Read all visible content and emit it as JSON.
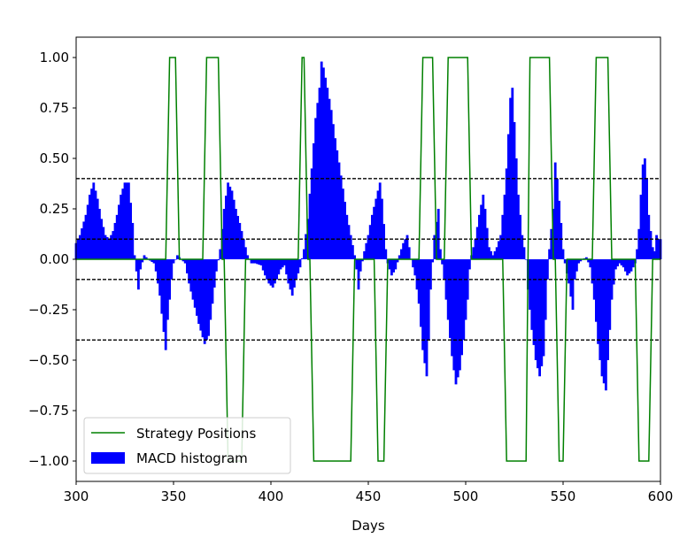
{
  "chart_data": {
    "type": "bar",
    "title": "",
    "xlabel": "Days",
    "ylabel": "",
    "xlim": [
      300,
      600
    ],
    "ylim": [
      -1.1,
      1.1
    ],
    "x_ticks": [
      300,
      350,
      400,
      450,
      500,
      550,
      600
    ],
    "x_tick_labels": [
      "300",
      "350",
      "400",
      "450",
      "500",
      "550",
      "600"
    ],
    "y_ticks": [
      1.0,
      0.75,
      0.5,
      0.25,
      0.0,
      -0.25,
      -0.5,
      -0.75,
      -1.0
    ],
    "y_tick_labels": [
      "1.00",
      "0.75",
      "0.50",
      "0.25",
      "0.00",
      "−0.25",
      "−0.50",
      "−0.75",
      "−1.00"
    ],
    "grid": false,
    "legend_position": "lower-left",
    "threshold_lines": [
      0.4,
      0.1,
      -0.1,
      -0.4
    ],
    "threshold_style": "dashed black",
    "series": [
      {
        "name": "MACD histogram",
        "type": "bar",
        "color": "#0000ff",
        "bar_width": 1,
        "envelope": [
          [
            300,
            0.08
          ],
          [
            302,
            0.12
          ],
          [
            305,
            0.22
          ],
          [
            307,
            0.32
          ],
          [
            309,
            0.38
          ],
          [
            311,
            0.3
          ],
          [
            313,
            0.2
          ],
          [
            315,
            0.12
          ],
          [
            317,
            0.1
          ],
          [
            319,
            0.14
          ],
          [
            321,
            0.22
          ],
          [
            323,
            0.32
          ],
          [
            325,
            0.38
          ],
          [
            327,
            0.38
          ],
          [
            329,
            0.18
          ],
          [
            330,
            0.02
          ],
          [
            331,
            -0.06
          ],
          [
            332,
            -0.15
          ],
          [
            333,
            -0.05
          ],
          [
            335,
            0.02
          ],
          [
            337,
            0.0
          ],
          [
            340,
            -0.02
          ],
          [
            341,
            -0.06
          ],
          [
            343,
            -0.18
          ],
          [
            345,
            -0.36
          ],
          [
            346,
            -0.45
          ],
          [
            347,
            -0.3
          ],
          [
            349,
            -0.1
          ],
          [
            350,
            -0.02
          ],
          [
            352,
            0.02
          ],
          [
            354,
            0.0
          ],
          [
            356,
            -0.02
          ],
          [
            358,
            -0.12
          ],
          [
            360,
            -0.2
          ],
          [
            363,
            -0.32
          ],
          [
            366,
            -0.42
          ],
          [
            368,
            -0.38
          ],
          [
            370,
            -0.22
          ],
          [
            372,
            -0.06
          ],
          [
            374,
            0.05
          ],
          [
            376,
            0.25
          ],
          [
            378,
            0.38
          ],
          [
            380,
            0.34
          ],
          [
            382,
            0.25
          ],
          [
            384,
            0.18
          ],
          [
            386,
            0.1
          ],
          [
            388,
            0.02
          ],
          [
            390,
            -0.02
          ],
          [
            392,
            -0.02
          ],
          [
            395,
            -0.03
          ],
          [
            397,
            -0.08
          ],
          [
            399,
            -0.12
          ],
          [
            401,
            -0.14
          ],
          [
            403,
            -0.1
          ],
          [
            405,
            -0.05
          ],
          [
            407,
            -0.03
          ],
          [
            409,
            -0.12
          ],
          [
            411,
            -0.18
          ],
          [
            413,
            -0.1
          ],
          [
            415,
            -0.04
          ],
          [
            417,
            0.05
          ],
          [
            419,
            0.2
          ],
          [
            421,
            0.45
          ],
          [
            423,
            0.7
          ],
          [
            425,
            0.85
          ],
          [
            426,
            0.98
          ],
          [
            427,
            0.95
          ],
          [
            429,
            0.85
          ],
          [
            431,
            0.74
          ],
          [
            433,
            0.6
          ],
          [
            435,
            0.48
          ],
          [
            437,
            0.35
          ],
          [
            439,
            0.22
          ],
          [
            441,
            0.12
          ],
          [
            443,
            0.02
          ],
          [
            444,
            -0.05
          ],
          [
            445,
            -0.15
          ],
          [
            446,
            -0.06
          ],
          [
            448,
            0.04
          ],
          [
            450,
            0.12
          ],
          [
            452,
            0.22
          ],
          [
            454,
            0.3
          ],
          [
            456,
            0.38
          ],
          [
            457,
            0.3
          ],
          [
            459,
            0.05
          ],
          [
            460,
            -0.02
          ],
          [
            462,
            -0.08
          ],
          [
            464,
            -0.05
          ],
          [
            466,
            0.02
          ],
          [
            468,
            0.08
          ],
          [
            470,
            0.12
          ],
          [
            471,
            0.06
          ],
          [
            472,
            0.0
          ],
          [
            474,
            -0.08
          ],
          [
            476,
            -0.22
          ],
          [
            478,
            -0.45
          ],
          [
            480,
            -0.58
          ],
          [
            481,
            -0.4
          ],
          [
            482,
            -0.15
          ],
          [
            484,
            0.12
          ],
          [
            486,
            0.25
          ],
          [
            487,
            0.05
          ],
          [
            489,
            -0.1
          ],
          [
            491,
            -0.3
          ],
          [
            493,
            -0.48
          ],
          [
            495,
            -0.62
          ],
          [
            497,
            -0.55
          ],
          [
            499,
            -0.4
          ],
          [
            501,
            -0.2
          ],
          [
            502,
            -0.05
          ],
          [
            503,
            0.02
          ],
          [
            505,
            0.1
          ],
          [
            507,
            0.22
          ],
          [
            509,
            0.32
          ],
          [
            510,
            0.25
          ],
          [
            512,
            0.06
          ],
          [
            514,
            0.02
          ],
          [
            516,
            0.06
          ],
          [
            518,
            0.12
          ],
          [
            520,
            0.32
          ],
          [
            521,
            0.45
          ],
          [
            522,
            0.62
          ],
          [
            523,
            0.8
          ],
          [
            524,
            0.85
          ],
          [
            525,
            0.68
          ],
          [
            526,
            0.5
          ],
          [
            527,
            0.32
          ],
          [
            529,
            0.12
          ],
          [
            531,
            0.0
          ],
          [
            532,
            -0.15
          ],
          [
            534,
            -0.35
          ],
          [
            536,
            -0.5
          ],
          [
            538,
            -0.58
          ],
          [
            540,
            -0.48
          ],
          [
            541,
            -0.3
          ],
          [
            542,
            -0.1
          ],
          [
            543,
            0.05
          ],
          [
            545,
            0.25
          ],
          [
            546,
            0.48
          ],
          [
            547,
            0.4
          ],
          [
            549,
            0.18
          ],
          [
            550,
            0.05
          ],
          [
            551,
            -0.02
          ],
          [
            553,
            -0.12
          ],
          [
            555,
            -0.25
          ],
          [
            556,
            -0.1
          ],
          [
            558,
            -0.02
          ],
          [
            560,
            0.0
          ],
          [
            562,
            0.01
          ],
          [
            564,
            -0.04
          ],
          [
            566,
            -0.2
          ],
          [
            568,
            -0.42
          ],
          [
            570,
            -0.58
          ],
          [
            572,
            -0.65
          ],
          [
            573,
            -0.5
          ],
          [
            575,
            -0.2
          ],
          [
            577,
            -0.05
          ],
          [
            579,
            -0.02
          ],
          [
            581,
            -0.04
          ],
          [
            583,
            -0.08
          ],
          [
            585,
            -0.06
          ],
          [
            587,
            -0.02
          ],
          [
            588,
            0.05
          ],
          [
            589,
            0.15
          ],
          [
            590,
            0.32
          ],
          [
            591,
            0.47
          ],
          [
            592,
            0.5
          ],
          [
            593,
            0.4
          ],
          [
            594,
            0.22
          ],
          [
            595,
            0.14
          ],
          [
            596,
            0.06
          ],
          [
            597,
            0.04
          ],
          [
            598,
            0.12
          ],
          [
            599,
            0.1
          ],
          [
            600,
            0.1
          ]
        ]
      },
      {
        "name": "Strategy Positions",
        "type": "line",
        "color": "#008000",
        "points": [
          [
            300,
            0
          ],
          [
            346,
            0
          ],
          [
            348,
            1
          ],
          [
            351,
            1
          ],
          [
            353,
            0
          ],
          [
            365,
            0
          ],
          [
            367,
            1
          ],
          [
            373,
            1
          ],
          [
            375,
            0
          ],
          [
            376,
            0
          ],
          [
            378,
            -1
          ],
          [
            385,
            -1
          ],
          [
            387,
            0
          ],
          [
            414,
            0
          ],
          [
            416,
            1
          ],
          [
            417,
            1
          ],
          [
            419,
            0
          ],
          [
            420,
            0
          ],
          [
            422,
            -1
          ],
          [
            441,
            -1
          ],
          [
            443,
            0
          ],
          [
            453,
            0
          ],
          [
            455,
            -1
          ],
          [
            458,
            -1
          ],
          [
            460,
            0
          ],
          [
            476,
            0
          ],
          [
            478,
            1
          ],
          [
            483,
            1
          ],
          [
            485,
            0
          ],
          [
            489,
            0
          ],
          [
            491,
            1
          ],
          [
            501,
            1
          ],
          [
            503,
            0
          ],
          [
            519,
            0
          ],
          [
            521,
            -1
          ],
          [
            531,
            -1
          ],
          [
            533,
            1
          ],
          [
            543,
            1
          ],
          [
            545,
            0
          ],
          [
            546,
            0
          ],
          [
            548,
            -1
          ],
          [
            550,
            -1
          ],
          [
            552,
            0
          ],
          [
            565,
            0
          ],
          [
            567,
            1
          ],
          [
            573,
            1
          ],
          [
            575,
            0
          ],
          [
            587,
            0
          ],
          [
            589,
            -1
          ],
          [
            594,
            -1
          ],
          [
            596,
            0
          ],
          [
            600,
            0
          ]
        ]
      }
    ],
    "legend": [
      {
        "label": "Strategy Positions",
        "kind": "line",
        "color": "#008000"
      },
      {
        "label": "MACD histogram",
        "kind": "patch",
        "color": "#0000ff"
      }
    ]
  }
}
